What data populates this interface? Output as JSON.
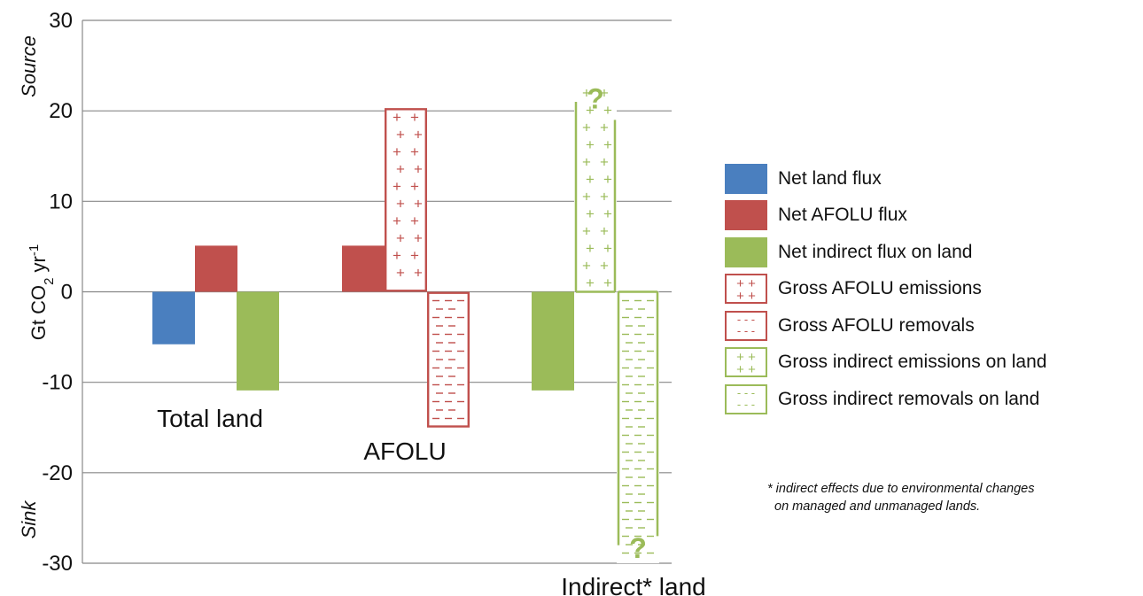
{
  "chart_data": {
    "type": "bar",
    "ylabel": "Gt CO2 yr-1",
    "ylabel_parts": {
      "base": "Gt CO",
      "sub": "2",
      "mid": " yr",
      "sup": "-1"
    },
    "ylim": [
      -30,
      30
    ],
    "yticks": [
      30,
      20,
      10,
      0,
      -10,
      -20,
      -30
    ],
    "ytick_labels": [
      "30",
      "20",
      "10",
      "0",
      "-10",
      "-20",
      "-30"
    ],
    "grid": true,
    "side_labels": {
      "top": "Source",
      "bottom": "Sink"
    },
    "groups": [
      {
        "name": "Total land",
        "bars": [
          {
            "series": "Net land flux",
            "value": -5.8
          },
          {
            "series": "Net AFOLU flux",
            "value": 5.1
          },
          {
            "series": "Net indirect flux on land",
            "value": -10.9
          }
        ]
      },
      {
        "name": "AFOLU",
        "bars": [
          {
            "series": "Net AFOLU flux",
            "value": 5.1
          },
          {
            "series": "Gross AFOLU emissions",
            "value": 20.3
          },
          {
            "series": "Gross AFOLU removals",
            "value": -15.0
          }
        ]
      },
      {
        "name": "Indirect* land",
        "bars": [
          {
            "series": "Net indirect flux on land",
            "value": -10.9
          },
          {
            "series": "Gross indirect emissions on land",
            "value": 23,
            "uncertain": true,
            "uncertainty_label": "?"
          },
          {
            "series": "Gross indirect removals on land",
            "value": -30,
            "uncertain": true,
            "uncertainty_label": "?"
          }
        ]
      }
    ],
    "legend_position": "right"
  },
  "legend": [
    {
      "label": "Net land flux",
      "style": "solid",
      "color": "#4a7fbf"
    },
    {
      "label": "Net AFOLU flux",
      "style": "solid",
      "color": "#c0504d"
    },
    {
      "label": "Net indirect flux on land",
      "style": "solid",
      "color": "#9bbb59"
    },
    {
      "label": "Gross AFOLU emissions",
      "style": "plus",
      "color": "#c0504d"
    },
    {
      "label": "Gross AFOLU removals",
      "style": "minus",
      "color": "#c0504d"
    },
    {
      "label": "Gross indirect emissions on land",
      "style": "plus",
      "color": "#9bbb59"
    },
    {
      "label": "Gross indirect removals on land",
      "style": "minus",
      "color": "#9bbb59"
    }
  ],
  "footnote": {
    "line1": "* indirect effects due to environmental changes",
    "line2": "on managed and unmanaged lands."
  },
  "colors": {
    "blue": "#4a7fbf",
    "red": "#c0504d",
    "green": "#9bbb59",
    "grid": "#888888"
  }
}
